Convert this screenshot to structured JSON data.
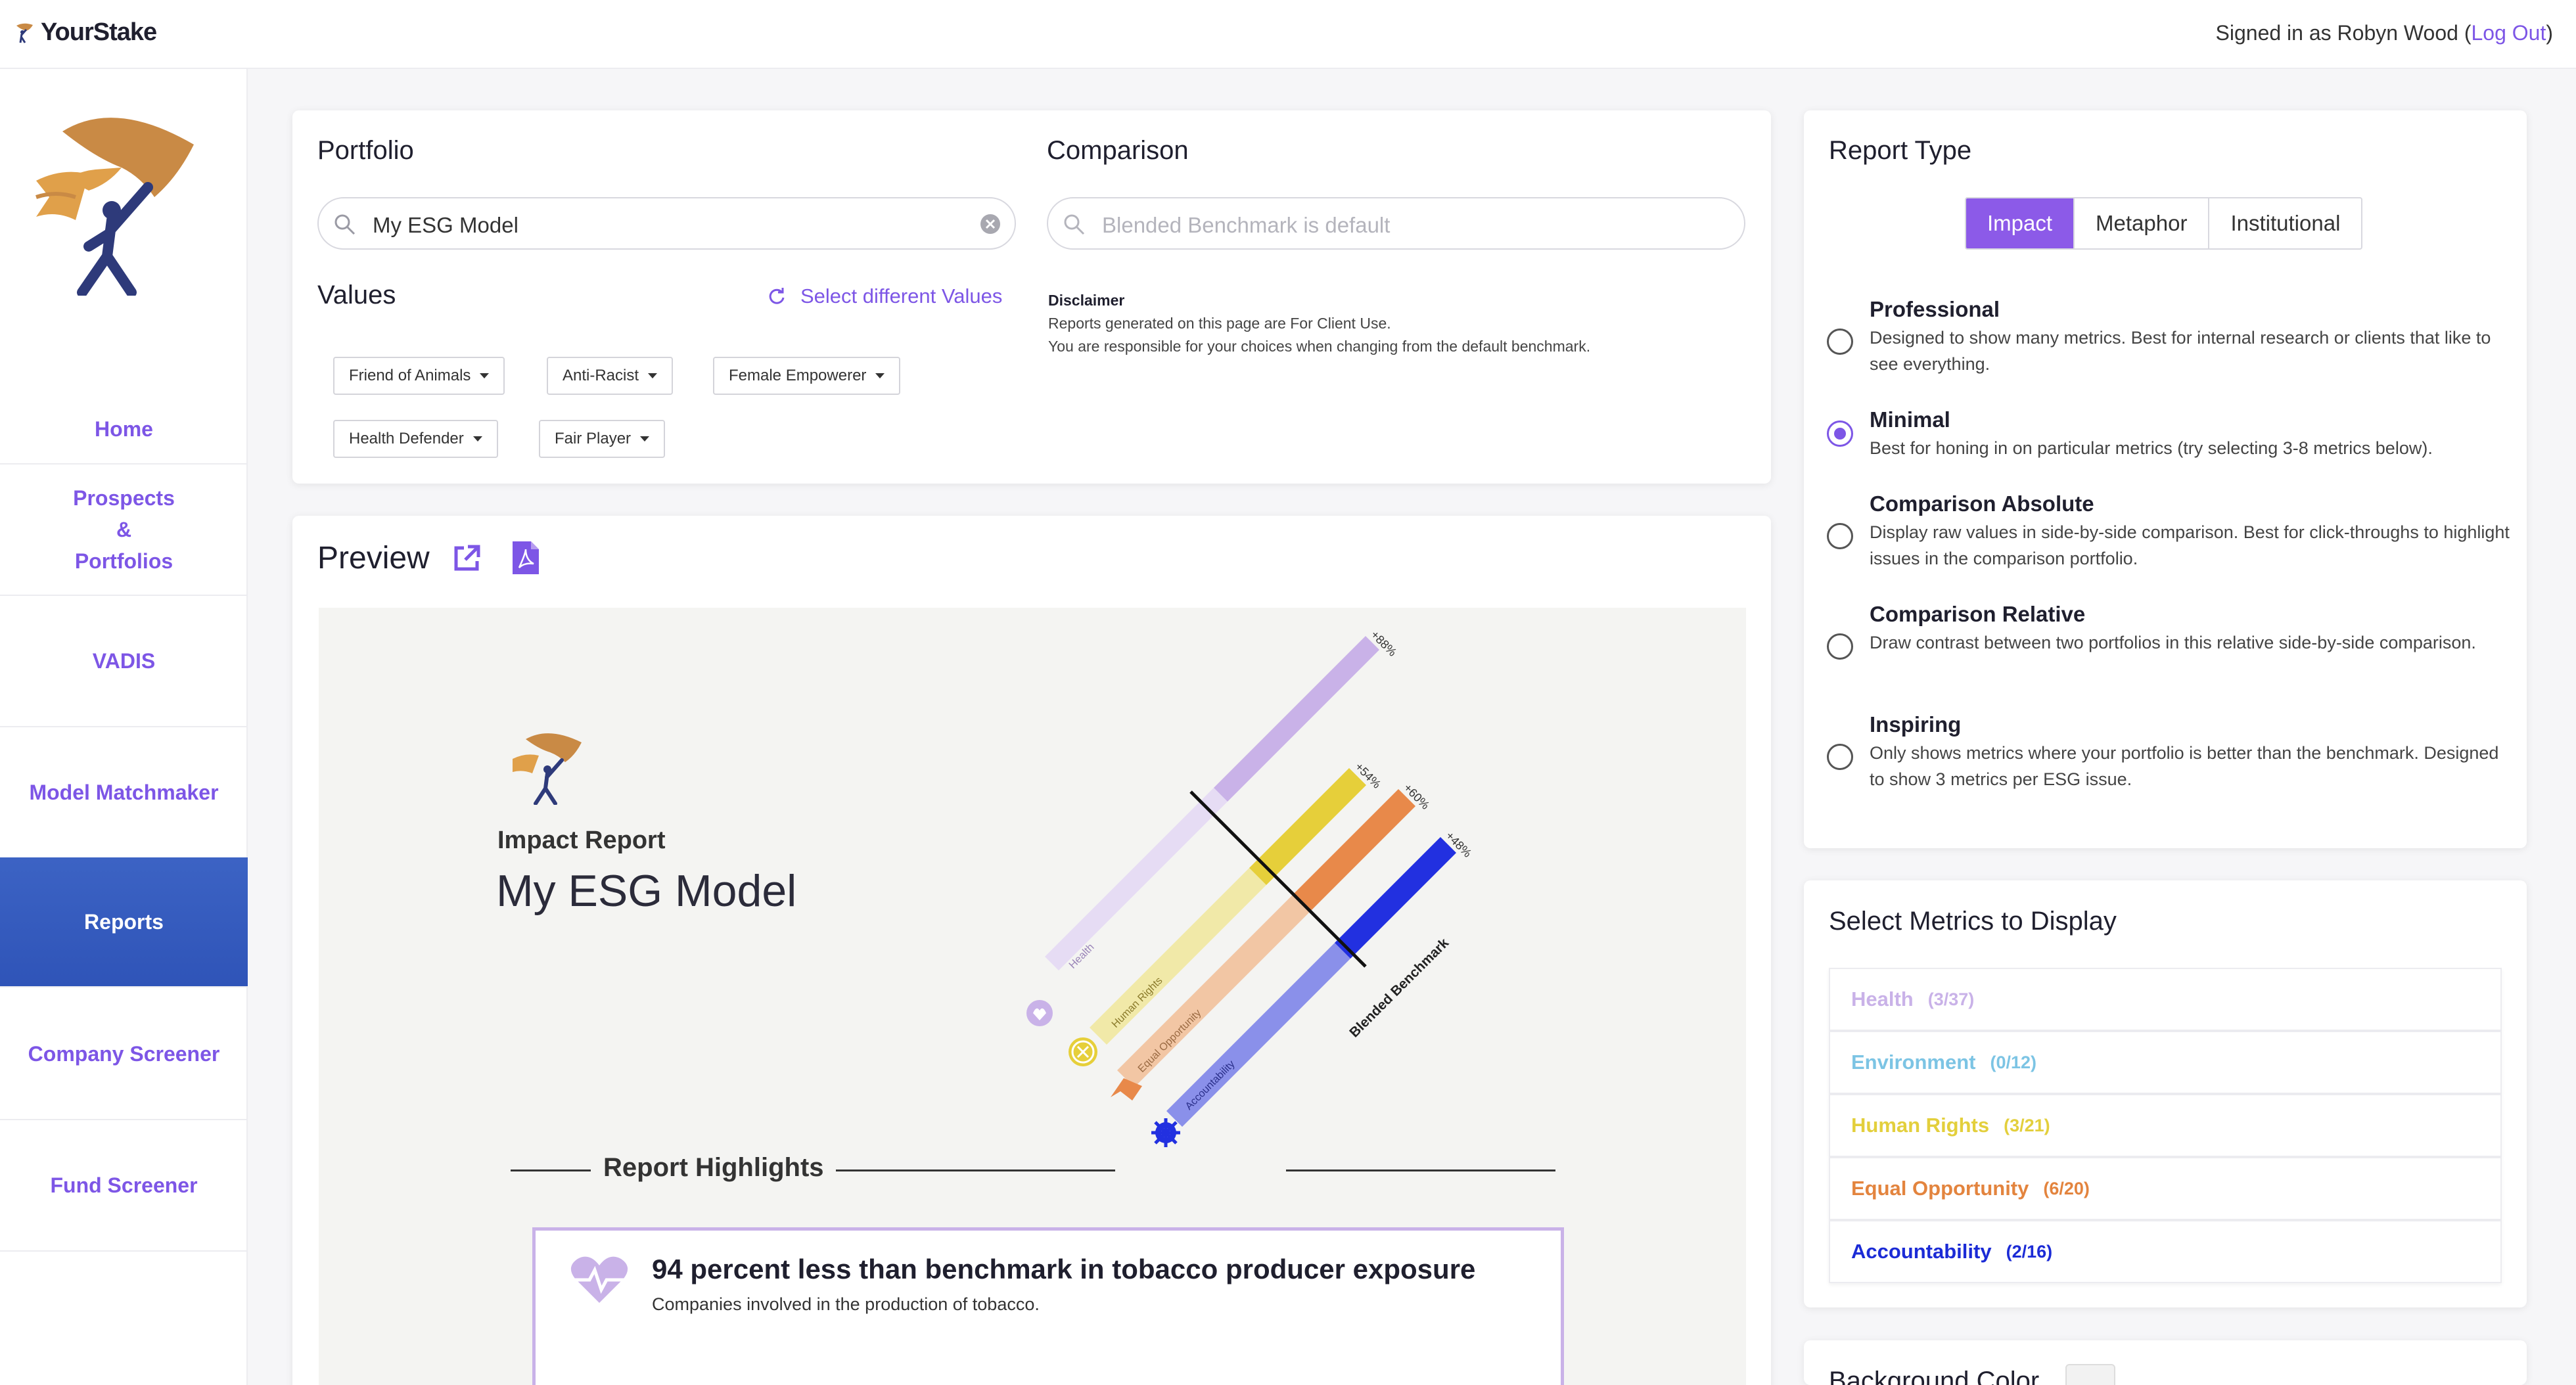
{
  "header": {
    "brand": "YourStake",
    "signed_prefix": "Signed in as Robyn Wood (",
    "logout": "Log Out",
    "signed_suffix": ")"
  },
  "sidebar": {
    "items": [
      {
        "label": "Home"
      },
      {
        "label": "Prospects\n&\nPortfolios"
      },
      {
        "label": "VADIS"
      },
      {
        "label": "Model Matchmaker"
      },
      {
        "label": "Reports"
      },
      {
        "label": "Company Screener"
      },
      {
        "label": "Fund Screener"
      }
    ]
  },
  "portfolio": {
    "title": "Portfolio",
    "search_value": "My ESG Model"
  },
  "comparison": {
    "title": "Comparison",
    "placeholder": "Blended Benchmark is default"
  },
  "values": {
    "title": "Values",
    "select_label": "Select different Values",
    "chips": [
      "Friend of Animals",
      "Anti-Racist",
      "Female Empowerer",
      "Health Defender",
      "Fair Player"
    ]
  },
  "disclaimer": {
    "title": "Disclaimer",
    "line1": "Reports generated on this page are For Client Use.",
    "line2": "You are responsible for your choices when changing from the default benchmark."
  },
  "preview": {
    "title": "Preview",
    "report_subtitle": "Impact Report",
    "report_title": "My ESG Model",
    "highlights_title": "Report Highlights",
    "highlight_text": "94 percent less than benchmark in tobacco producer exposure",
    "highlight_sub": "Companies involved in the production of tobacco.",
    "benchmark_label": "Blended Benchmark",
    "bars": [
      {
        "label": "Health",
        "value": "+88%",
        "color": "#c9b2e8",
        "light": "#e6dcf4"
      },
      {
        "label": "Human Rights",
        "value": "+54%",
        "color": "#e6cf3a",
        "light": "#f1e9a8"
      },
      {
        "label": "Equal Opportunity",
        "value": "+60%",
        "color": "#e8894a",
        "light": "#f2c6a4"
      },
      {
        "label": "Accountability",
        "value": "+48%",
        "color": "#2230e0",
        "light": "#8a90ea"
      }
    ]
  },
  "report_type": {
    "title": "Report Type",
    "tabs": [
      "Impact",
      "Metaphor",
      "Institutional"
    ],
    "active_tab": "Impact",
    "options": [
      {
        "title": "Professional",
        "desc": "Designed to show many metrics. Best for internal research or clients that like to see everything."
      },
      {
        "title": "Minimal",
        "desc": "Best for honing in on particular metrics (try selecting 3-8 metrics below).",
        "selected": true
      },
      {
        "title": "Comparison Absolute",
        "desc": "Display raw values in side-by-side comparison. Best for click-throughs to highlight issues in the comparison portfolio."
      },
      {
        "title": "Comparison Relative",
        "desc": "Draw contrast between two portfolios in this relative side-by-side comparison."
      },
      {
        "title": "Inspiring",
        "desc": "Only shows metrics where your portfolio is better than the benchmark. Designed to show 3 metrics per ESG issue."
      }
    ]
  },
  "metrics": {
    "title": "Select Metrics to Display",
    "items": [
      {
        "label": "Health",
        "count": "(3/37)",
        "color": "#c9b2e8"
      },
      {
        "label": "Environment",
        "count": "(0/12)",
        "color": "#7cc4e4"
      },
      {
        "label": "Human Rights",
        "count": "(3/21)",
        "color": "#e3cf3c"
      },
      {
        "label": "Equal Opportunity",
        "count": "(6/20)",
        "color": "#e3843e"
      },
      {
        "label": "Accountability",
        "count": "(2/16)",
        "color": "#1b2bd6"
      }
    ]
  },
  "background": {
    "title": "Background Color"
  }
}
